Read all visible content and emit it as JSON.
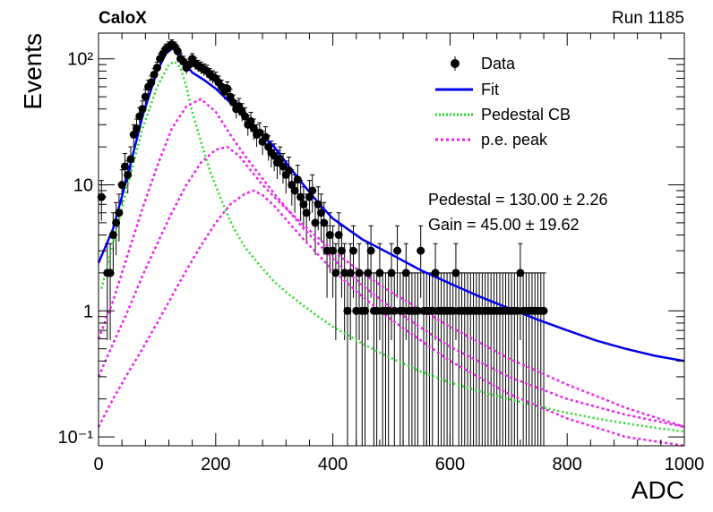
{
  "header": {
    "experiment": "CaloX",
    "run": "Run 1185"
  },
  "chart_data": {
    "type": "scatter",
    "title": "",
    "xlabel": "ADC",
    "ylabel": "Events",
    "xlim": [
      0,
      1000
    ],
    "ylim": [
      0.085,
      160
    ],
    "yscale": "log",
    "grid": false,
    "legend_position": "top-right",
    "x_ticks": [
      0,
      200,
      400,
      600,
      800,
      1000
    ],
    "x_tick_labels": [
      "0",
      "200",
      "400",
      "600",
      "800",
      "1000"
    ],
    "y_ticks": [
      0.1,
      1,
      10,
      100
    ],
    "y_tick_labels": [
      "10⁻¹",
      "1",
      "10",
      "10²"
    ],
    "legend": [
      {
        "label": "Data",
        "color": "#000000",
        "style": "marker"
      },
      {
        "label": "Fit",
        "color": "#0000ee",
        "style": "line"
      },
      {
        "label": "Pedestal CB",
        "color": "#22dd22",
        "style": "dotted"
      },
      {
        "label": "p.e. peak",
        "color": "#ee22ee",
        "style": "dotted"
      }
    ],
    "annotations": [
      {
        "text": "Pedestal = 130.00 ± 2.26"
      },
      {
        "text": "Gain = 45.00 ± 19.62"
      }
    ],
    "data_points": {
      "x": [
        5,
        15,
        20,
        25,
        30,
        35,
        40,
        45,
        50,
        55,
        60,
        65,
        70,
        75,
        80,
        85,
        90,
        95,
        100,
        105,
        110,
        115,
        120,
        125,
        130,
        135,
        140,
        145,
        150,
        155,
        160,
        165,
        170,
        175,
        180,
        185,
        190,
        195,
        200,
        205,
        210,
        215,
        220,
        225,
        230,
        235,
        240,
        245,
        250,
        255,
        260,
        265,
        270,
        275,
        280,
        285,
        290,
        295,
        300,
        305,
        310,
        315,
        320,
        325,
        330,
        335,
        340,
        345,
        350,
        355,
        360,
        365,
        370,
        375,
        380,
        385,
        390,
        395,
        400,
        405,
        410,
        415,
        420,
        425,
        430,
        435,
        440,
        445,
        450,
        455,
        460,
        465,
        470,
        475,
        480,
        485,
        490,
        495,
        500,
        505,
        510,
        515,
        520,
        525,
        530,
        535,
        540,
        545,
        550,
        555,
        560,
        565,
        570,
        575,
        580,
        585,
        590,
        595,
        600,
        605,
        610,
        615,
        620,
        625,
        630,
        635,
        640,
        645,
        650,
        655,
        660,
        665,
        670,
        675,
        680,
        685,
        690,
        695,
        700,
        705,
        710,
        715,
        720,
        725,
        730,
        735,
        740,
        745,
        750,
        755,
        760
      ],
      "y": [
        8,
        2,
        2,
        4,
        5,
        6,
        10,
        14,
        12,
        16,
        25,
        28,
        35,
        40,
        50,
        60,
        65,
        75,
        85,
        100,
        110,
        120,
        125,
        130,
        125,
        115,
        100,
        95,
        85,
        90,
        100,
        92,
        88,
        85,
        82,
        80,
        75,
        72,
        70,
        65,
        60,
        55,
        58,
        50,
        45,
        40,
        42,
        38,
        35,
        30,
        32,
        28,
        25,
        26,
        22,
        24,
        20,
        18,
        17,
        15,
        16,
        14,
        12,
        13,
        10,
        9,
        11,
        8,
        7,
        6,
        8,
        9,
        5,
        7,
        6,
        5,
        3,
        4,
        3,
        2,
        4,
        3,
        2,
        1,
        2,
        3,
        1,
        2,
        1,
        1,
        2,
        3,
        1,
        1,
        2,
        1,
        1,
        1,
        2,
        1,
        3,
        1,
        1,
        2,
        1,
        1,
        1,
        1,
        3,
        1,
        1,
        1,
        1,
        2,
        1,
        1,
        1,
        1,
        1,
        1,
        2,
        1,
        1,
        1,
        1,
        1,
        1,
        1,
        1,
        1,
        1,
        1,
        1,
        1,
        1,
        1,
        1,
        1,
        1,
        1,
        1,
        1,
        2,
        1,
        1,
        1,
        1,
        1,
        1,
        1,
        1
      ]
    },
    "series": [
      {
        "name": "Fit",
        "color": "#0000ee",
        "x": [
          0,
          25,
          50,
          75,
          100,
          115,
          130,
          135,
          145,
          160,
          180,
          200,
          225,
          250,
          275,
          300,
          325,
          350,
          375,
          400,
          450,
          500,
          550,
          600,
          650,
          700,
          750,
          800,
          850,
          900,
          950,
          1000
        ],
        "y": [
          2.4,
          4.5,
          12,
          35,
          80,
          110,
          125,
          120,
          95,
          78,
          68,
          58,
          45,
          34,
          26,
          20,
          14,
          10,
          7.2,
          5.4,
          3.7,
          2.8,
          2.1,
          1.65,
          1.3,
          1.05,
          0.85,
          0.7,
          0.58,
          0.5,
          0.44,
          0.4
        ]
      },
      {
        "name": "Pedestal CB",
        "color": "#22dd22",
        "x": [
          5,
          25,
          50,
          75,
          100,
          120,
          130,
          140,
          150,
          160,
          175,
          190,
          210,
          230,
          250,
          275,
          300,
          325,
          350,
          375,
          400,
          450,
          500,
          550,
          600,
          650,
          700,
          750,
          800,
          850,
          900,
          950,
          1000
        ],
        "y": [
          1.5,
          3.5,
          10,
          28,
          60,
          90,
          95,
          85,
          60,
          38,
          22,
          13,
          7.5,
          4.6,
          3.2,
          2.3,
          1.7,
          1.35,
          1.1,
          0.9,
          0.75,
          0.55,
          0.42,
          0.33,
          0.27,
          0.23,
          0.2,
          0.175,
          0.155,
          0.14,
          0.128,
          0.118,
          0.11
        ]
      },
      {
        "name": "p.e. peak",
        "color": "#ee22ee",
        "x": [
          0,
          25,
          50,
          75,
          100,
          125,
          150,
          175,
          200,
          225,
          250,
          275,
          300,
          350,
          400,
          450,
          500,
          600,
          700,
          800,
          900,
          1000
        ],
        "y": [
          0.6,
          1.2,
          2.8,
          6.5,
          14,
          28,
          42,
          48,
          38,
          25,
          17,
          12,
          8.5,
          4.5,
          2.6,
          1.6,
          1.05,
          0.52,
          0.3,
          0.2,
          0.15,
          0.12
        ]
      },
      {
        "name": "p.e. peak",
        "color": "#ee22ee",
        "x": [
          0,
          25,
          50,
          75,
          100,
          125,
          150,
          175,
          200,
          220,
          240,
          260,
          280,
          300,
          350,
          400,
          450,
          500,
          600,
          700,
          800,
          900,
          1000
        ],
        "y": [
          0.3,
          0.55,
          1.0,
          1.9,
          3.4,
          6,
          10,
          15,
          19,
          20,
          17,
          13,
          10,
          8,
          4.8,
          3,
          2.0,
          1.4,
          0.75,
          0.42,
          0.26,
          0.17,
          0.12
        ]
      },
      {
        "name": "p.e. peak",
        "color": "#ee22ee",
        "x": [
          0,
          25,
          50,
          75,
          100,
          125,
          150,
          175,
          200,
          225,
          250,
          265,
          280,
          300,
          325,
          350,
          400,
          450,
          500,
          600,
          700,
          800,
          900,
          1000
        ],
        "y": [
          0.12,
          0.2,
          0.32,
          0.5,
          0.8,
          1.3,
          2.1,
          3.3,
          5,
          7,
          8.5,
          9,
          8.3,
          6.8,
          5,
          3.7,
          2.1,
          1.3,
          0.85,
          0.4,
          0.22,
          0.14,
          0.1,
          0.085
        ]
      }
    ]
  }
}
